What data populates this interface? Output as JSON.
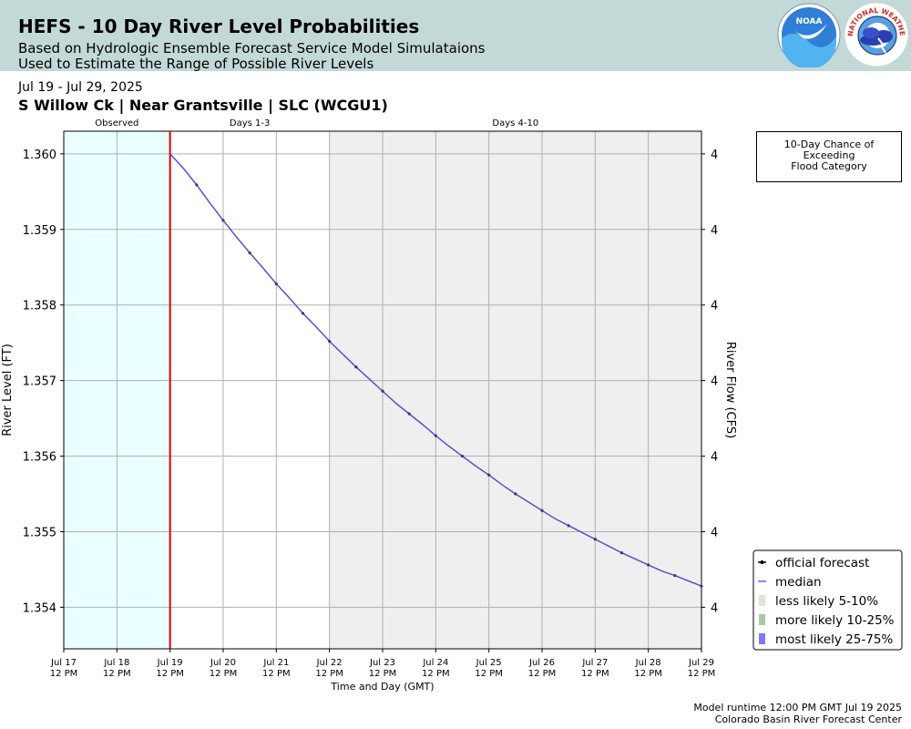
{
  "header": {
    "title": "HEFS - 10 Day River Level Probabilities",
    "subtitle_1": "Based on Hydrologic Ensemble Forecast Service Model Simulataions",
    "subtitle_2": "Used to Estimate the Range of Possible River Levels",
    "noaa_logo_text": "NOAA",
    "nws_logo_text": "NATIONAL WEATHER SERVICE"
  },
  "date_range": "Jul 19 - Jul 29, 2025",
  "station": "S Willow Ck | Near Grantsville | SLC (WCGU1)",
  "flood_box": {
    "line1": "10-Day Chance of",
    "line2": "Exceeding",
    "line3": "Flood Category"
  },
  "footer": {
    "runtime": "Model runtime 12:00 PM GMT Jul 19 2025",
    "center": "Colorado Basin River Forecast Center"
  },
  "colors": {
    "header_bg": "#c3d9d7",
    "observed_bg": "#eaffff",
    "days_4_10_bg": "#efefef",
    "current_time_line": "#e00000",
    "median_line": "#5a5aff",
    "official_forecast": "#000000",
    "less_likely": "#e6e2d3",
    "more_likely": "#a9c9a4",
    "most_likely": "#7b7bff"
  },
  "chart_data": {
    "type": "line",
    "title": "",
    "xlabel": "Time and Day (GMT)",
    "ylabel": "River Level (FT)",
    "y2label": "River Flow (CFS)",
    "x_range": [
      "Jul 17 12 PM",
      "Jul 29 12 PM"
    ],
    "ylim": [
      1.35345,
      1.3603
    ],
    "y_ticks": [
      1.354,
      1.355,
      1.356,
      1.357,
      1.358,
      1.359,
      1.36
    ],
    "y_tick_labels": [
      "1.354",
      "1.355",
      "1.356",
      "1.357",
      "1.358",
      "1.359",
      "1.360"
    ],
    "y2_tick_labels": [
      "4",
      "4",
      "4",
      "4",
      "4",
      "4",
      "4"
    ],
    "x_ticks": [
      {
        "day": "Jul 17",
        "time": "12 PM"
      },
      {
        "day": "Jul 18",
        "time": "12 PM"
      },
      {
        "day": "Jul 19",
        "time": "12 PM"
      },
      {
        "day": "Jul 20",
        "time": "12 PM"
      },
      {
        "day": "Jul 21",
        "time": "12 PM"
      },
      {
        "day": "Jul 22",
        "time": "12 PM"
      },
      {
        "day": "Jul 23",
        "time": "12 PM"
      },
      {
        "day": "Jul 24",
        "time": "12 PM"
      },
      {
        "day": "Jul 25",
        "time": "12 PM"
      },
      {
        "day": "Jul 26",
        "time": "12 PM"
      },
      {
        "day": "Jul 27",
        "time": "12 PM"
      },
      {
        "day": "Jul 28",
        "time": "12 PM"
      },
      {
        "day": "Jul 29",
        "time": "12 PM"
      }
    ],
    "period_labels": [
      {
        "label": "Observed",
        "start_day": 0,
        "end_day": 2
      },
      {
        "label": "Days 1-3",
        "start_day": 2,
        "end_day": 5
      },
      {
        "label": "Days 4-10",
        "start_day": 5,
        "end_day": 12
      }
    ],
    "shaded_regions": [
      {
        "name": "observed",
        "start_day": 0,
        "end_day": 2
      },
      {
        "name": "days_4_10",
        "start_day": 5,
        "end_day": 12
      }
    ],
    "forecast_start_day": 2,
    "grid": true,
    "legend_position": "bottom-right",
    "legend": [
      {
        "label": "official forecast",
        "kind": "line-marker"
      },
      {
        "label": "median",
        "kind": "line"
      },
      {
        "label": "less likely 5-10%",
        "kind": "patch"
      },
      {
        "label": "more likely 10-25%",
        "kind": "patch"
      },
      {
        "label": "most likely 25-75%",
        "kind": "patch"
      }
    ],
    "series": [
      {
        "name": "official forecast",
        "x_days_since_jul17_12pm": [
          2.0,
          2.25,
          2.5,
          2.75,
          3.0,
          3.25,
          3.5,
          3.75,
          4.0,
          4.25,
          4.5,
          4.75,
          5.0,
          5.25,
          5.5,
          5.75,
          6.0,
          6.25,
          6.5,
          6.75,
          7.0,
          7.25,
          7.5,
          7.75,
          8.0,
          8.25,
          8.5,
          8.75,
          9.0,
          9.25,
          9.5,
          9.75,
          10.0,
          10.25,
          10.5,
          10.75,
          11.0,
          11.25,
          11.5,
          11.75,
          12.0
        ],
        "values": [
          1.36,
          1.35981,
          1.35959,
          1.35935,
          1.35912,
          1.3589,
          1.35869,
          1.35849,
          1.35828,
          1.35809,
          1.35789,
          1.35771,
          1.35752,
          1.35735,
          1.35718,
          1.35702,
          1.35686,
          1.3567,
          1.35656,
          1.35642,
          1.35627,
          1.35613,
          1.356,
          1.35587,
          1.35575,
          1.35562,
          1.3555,
          1.35539,
          1.35528,
          1.35517,
          1.35508,
          1.35499,
          1.3549,
          1.35481,
          1.35472,
          1.35464,
          1.35456,
          1.35448,
          1.35442,
          1.35435,
          1.35428
        ]
      },
      {
        "name": "median",
        "x_days_since_jul17_12pm": [
          2.0,
          2.25,
          2.5,
          2.75,
          3.0,
          3.25,
          3.5,
          3.75,
          4.0,
          4.25,
          4.5,
          4.75,
          5.0,
          5.25,
          5.5,
          5.75,
          6.0,
          6.25,
          6.5,
          6.75,
          7.0,
          7.25,
          7.5,
          7.75,
          8.0,
          8.25,
          8.5,
          8.75,
          9.0,
          9.25,
          9.5,
          9.75,
          10.0,
          10.25,
          10.5,
          10.75,
          11.0,
          11.25,
          11.5,
          11.75,
          12.0
        ],
        "values": [
          1.36,
          1.35981,
          1.35959,
          1.35935,
          1.35912,
          1.3589,
          1.35869,
          1.35849,
          1.35828,
          1.35809,
          1.35789,
          1.35771,
          1.35752,
          1.35735,
          1.35718,
          1.35702,
          1.35686,
          1.3567,
          1.35656,
          1.35642,
          1.35627,
          1.35613,
          1.356,
          1.35587,
          1.35575,
          1.35562,
          1.3555,
          1.35539,
          1.35528,
          1.35517,
          1.35508,
          1.35499,
          1.3549,
          1.35481,
          1.35472,
          1.35464,
          1.35456,
          1.35448,
          1.35442,
          1.35435,
          1.35428
        ]
      }
    ]
  }
}
